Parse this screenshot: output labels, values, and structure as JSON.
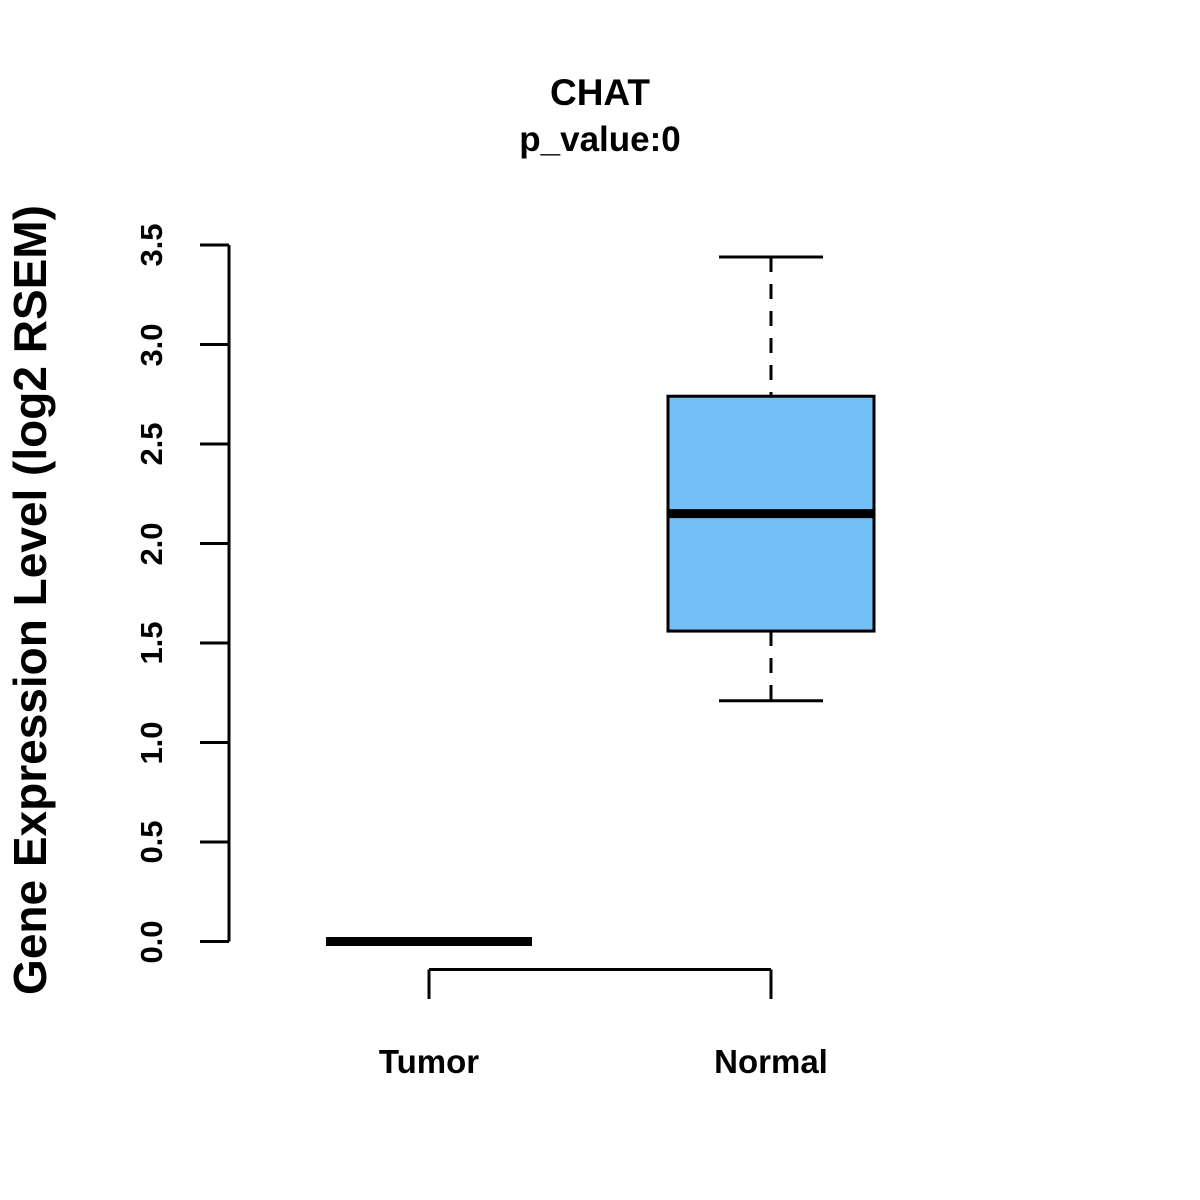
{
  "header": {
    "title": "CHAT",
    "subtitle": "p_value:0"
  },
  "colors": {
    "box_fill": "#74BFF5",
    "stroke": "#000000",
    "background": "#ffffff"
  },
  "chart_data": {
    "type": "boxplot",
    "title": "CHAT",
    "subtitle": "p_value:0",
    "xlabel": "",
    "ylabel": "Gene Expression Level (log2 RSEM)",
    "categories": [
      "Tumor",
      "Normal"
    ],
    "ylim": [
      0,
      3.5
    ],
    "yticks": [
      0.0,
      0.5,
      1.0,
      1.5,
      2.0,
      2.5,
      3.0,
      3.5
    ],
    "ytick_labels": [
      "0.0",
      "0.5",
      "1.0",
      "1.5",
      "2.0",
      "2.5",
      "3.0",
      "3.5"
    ],
    "grid": false,
    "legend": "none",
    "series": [
      {
        "name": "Tumor",
        "min": 0,
        "q1": 0,
        "median": 0,
        "q3": 0,
        "max": 0,
        "fill": "#74BFF5"
      },
      {
        "name": "Normal",
        "min": 1.21,
        "q1": 1.56,
        "median": 2.15,
        "q3": 2.74,
        "max": 3.44,
        "fill": "#74BFF5"
      }
    ],
    "significance_bracket": {
      "between": [
        "Tumor",
        "Normal"
      ],
      "label": ""
    }
  }
}
